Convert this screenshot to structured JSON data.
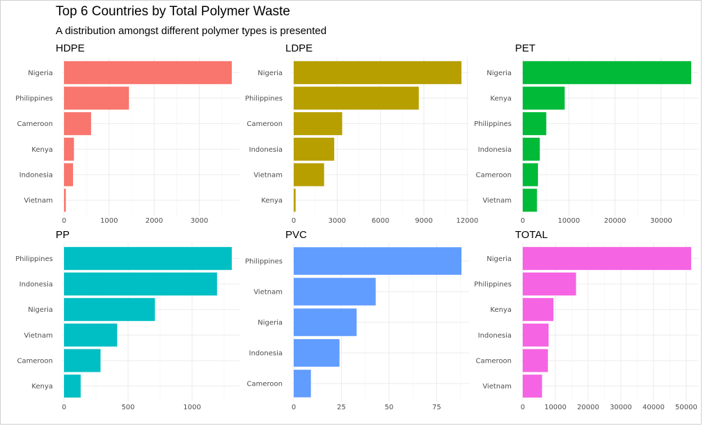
{
  "title": "Top 6 Countries by Total Polymer Waste",
  "subtitle": "A distribution amongst different polymer types is presented",
  "chart_data": [
    {
      "type": "bar",
      "orientation": "horizontal",
      "title": "HDPE",
      "color": "#F8766D",
      "categories": [
        "Nigeria",
        "Philippines",
        "Cameroon",
        "Kenya",
        "Indonesia",
        "Vietnam"
      ],
      "values": [
        3720,
        1440,
        600,
        220,
        200,
        40
      ],
      "xlim": [
        0,
        3720
      ],
      "xticks": [
        0,
        1000,
        2000,
        3000
      ],
      "xtick_labels": [
        "0",
        "1000",
        "2000",
        "3000"
      ]
    },
    {
      "type": "bar",
      "orientation": "horizontal",
      "title": "LDPE",
      "color": "#B79F00",
      "categories": [
        "Nigeria",
        "Philippines",
        "Cameroon",
        "Indonesia",
        "Vietnam",
        "Kenya"
      ],
      "values": [
        11600,
        8650,
        3350,
        2800,
        2100,
        130
      ],
      "xlim": [
        0,
        11600
      ],
      "xticks": [
        0,
        3000,
        6000,
        9000,
        12000
      ],
      "xtick_labels": [
        "0",
        "3000",
        "6000",
        "9000",
        "12000"
      ]
    },
    {
      "type": "bar",
      "orientation": "horizontal",
      "title": "PET",
      "color": "#00BA38",
      "categories": [
        "Nigeria",
        "Kenya",
        "Philippines",
        "Indonesia",
        "Cameroon",
        "Vietnam"
      ],
      "values": [
        36500,
        9100,
        5100,
        3700,
        3300,
        3100
      ],
      "xlim": [
        0,
        36500
      ],
      "xticks": [
        0,
        10000,
        20000,
        30000
      ],
      "xtick_labels": [
        "0",
        "10000",
        "20000",
        "30000"
      ]
    },
    {
      "type": "bar",
      "orientation": "horizontal",
      "title": "PP",
      "color": "#00BFC4",
      "categories": [
        "Philippines",
        "Indonesia",
        "Nigeria",
        "Vietnam",
        "Cameroon",
        "Kenya"
      ],
      "values": [
        1310,
        1195,
        710,
        415,
        285,
        130
      ],
      "xlim": [
        0,
        1310
      ],
      "xticks": [
        0,
        500,
        1000
      ],
      "xtick_labels": [
        "0",
        "500",
        "1000"
      ]
    },
    {
      "type": "bar",
      "orientation": "horizontal",
      "title": "PVC",
      "color": "#619CFF",
      "categories": [
        "Philippines",
        "Vietnam",
        "Nigeria",
        "Indonesia",
        "Cameroon"
      ],
      "values": [
        88,
        43,
        33,
        24,
        9
      ],
      "xlim": [
        0,
        88
      ],
      "xticks": [
        0,
        25,
        50,
        75
      ],
      "xtick_labels": [
        "0",
        "25",
        "50",
        "75"
      ]
    },
    {
      "type": "bar",
      "orientation": "horizontal",
      "title": "TOTAL",
      "color": "#F564E3",
      "categories": [
        "Nigeria",
        "Philippines",
        "Kenya",
        "Indonesia",
        "Cameroon",
        "Vietnam"
      ],
      "values": [
        51500,
        16300,
        9400,
        7900,
        7700,
        5900
      ],
      "xlim": [
        0,
        51500
      ],
      "xticks": [
        0,
        10000,
        20000,
        30000,
        40000,
        50000
      ],
      "xtick_labels": [
        "0",
        "10000",
        "20000",
        "30000",
        "40000",
        "50000"
      ]
    }
  ]
}
